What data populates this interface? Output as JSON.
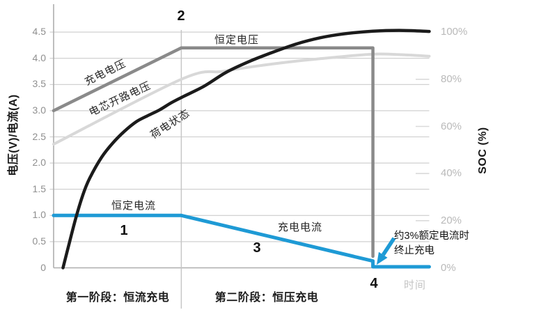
{
  "colors": {
    "accent_blue": "#1e9ad5",
    "charge_voltage_gray": "#8a8a8a",
    "ocv_light_gray": "#d8d8d8",
    "soc_black": "#1b1b1b",
    "gridline": "#cbcbcb",
    "axis_line": "#aeaeae",
    "phase_divider": "#c6c6c6",
    "right_tick_stub": "#dadada",
    "left_tick_text": "#8f8f8f",
    "right_tick_text": "#b9b9b9",
    "time_text": "#c4c4c4"
  },
  "markers": {
    "m1": "1",
    "m2": "2",
    "m3": "3",
    "m4": "4"
  },
  "curve_labels": {
    "constant_voltage": "恒定电压",
    "charge_voltage": "充电电压",
    "cell_ocv": "电芯开路电压",
    "soc": "荷电状态",
    "constant_current": "恒定电流",
    "charge_current": "充电电流"
  },
  "phases": [
    {
      "label": "第一阶段：恒流充电",
      "t_range": [
        0,
        34
      ]
    },
    {
      "label": "第二阶段：恒压充电",
      "t_range": [
        34,
        85
      ]
    }
  ],
  "annotation": {
    "line1": "约3%额定电流时",
    "line2": "终止充电"
  },
  "chart_data": {
    "type": "line",
    "x_axis": {
      "title": "时间",
      "range": [
        0,
        100
      ],
      "unit": "relative time, unlabeled"
    },
    "y_left": {
      "title": "电压(V)/电流(A)",
      "range": [
        0,
        4.5
      ],
      "ticks": [
        {
          "v": 0,
          "label": "0"
        },
        {
          "v": 0.5,
          "label": "0.5"
        },
        {
          "v": 1.0,
          "label": "1.0"
        },
        {
          "v": 1.5,
          "label": "1.5"
        },
        {
          "v": 2.0,
          "label": "2.0"
        },
        {
          "v": 2.5,
          "label": "2.5"
        },
        {
          "v": 3.0,
          "label": "3.0"
        },
        {
          "v": 3.5,
          "label": "3.5"
        },
        {
          "v": 4.0,
          "label": "4.0"
        },
        {
          "v": 4.5,
          "label": "4.5"
        }
      ]
    },
    "y_right": {
      "title": "SOC (%)",
      "range": [
        0,
        100
      ],
      "ticks": [
        {
          "p": 0,
          "label": "0%"
        },
        {
          "p": 20,
          "label": "20%"
        },
        {
          "p": 40,
          "label": "40%"
        },
        {
          "p": 60,
          "label": "60%"
        },
        {
          "p": 80,
          "label": "80%"
        },
        {
          "p": 100,
          "label": "100%"
        }
      ]
    },
    "phase_boundaries_t": [
      34,
      85
    ],
    "series": [
      {
        "key": "cell_ocv",
        "name": "电芯开路电压",
        "axis": "left",
        "color": "#d8d8d8",
        "width": 4,
        "smooth": true,
        "points": [
          [
            0,
            2.36
          ],
          [
            34,
            3.6
          ],
          [
            45,
            3.75
          ],
          [
            55,
            3.86
          ],
          [
            65,
            3.95
          ],
          [
            75,
            4.02
          ],
          [
            85,
            4.08
          ],
          [
            92,
            4.07
          ],
          [
            100,
            4.04
          ]
        ]
      },
      {
        "key": "charge_voltage",
        "name": "充电电压",
        "axis": "left",
        "color": "#8a8a8a",
        "width": 4.5,
        "smooth": false,
        "points": [
          [
            0,
            3.0
          ],
          [
            34,
            4.2
          ],
          [
            85,
            4.2
          ],
          [
            85,
            0.22
          ]
        ]
      },
      {
        "key": "charge_current",
        "name": "充电电流",
        "axis": "left",
        "color": "#1e9ad5",
        "width": 5,
        "smooth": false,
        "points": [
          [
            0,
            1.0
          ],
          [
            34,
            1.0
          ],
          [
            85,
            0.13
          ],
          [
            85,
            0.02
          ],
          [
            100,
            0.02
          ]
        ]
      },
      {
        "key": "soc",
        "name": "荷电状态",
        "axis": "right",
        "color": "#1b1b1b",
        "width": 4.5,
        "smooth": true,
        "points": [
          [
            2.5,
            0
          ],
          [
            4.1,
            10
          ],
          [
            5.9,
            21
          ],
          [
            7.8,
            31
          ],
          [
            9.6,
            38
          ],
          [
            12.8,
            47
          ],
          [
            15.8,
            53
          ],
          [
            18.9,
            58
          ],
          [
            22,
            62
          ],
          [
            25,
            64.5
          ],
          [
            28.2,
            67
          ],
          [
            31.3,
            70
          ],
          [
            34.3,
            72.5
          ],
          [
            40,
            77
          ],
          [
            46,
            83
          ],
          [
            52,
            87.5
          ],
          [
            58.4,
            91.5
          ],
          [
            64.7,
            95
          ],
          [
            71,
            97.6
          ],
          [
            77,
            99.2
          ],
          [
            85,
            100.4
          ],
          [
            93,
            100.7
          ],
          [
            100,
            100.3
          ]
        ]
      }
    ],
    "annotations": [
      {
        "text": "约3%额定电流时 终止充电",
        "target": "charge_current end of CV phase",
        "arrow": true
      }
    ],
    "legend": "inline curve labels, no legend box",
    "grid": "horizontal gridlines at every 0.5 on left axis"
  }
}
